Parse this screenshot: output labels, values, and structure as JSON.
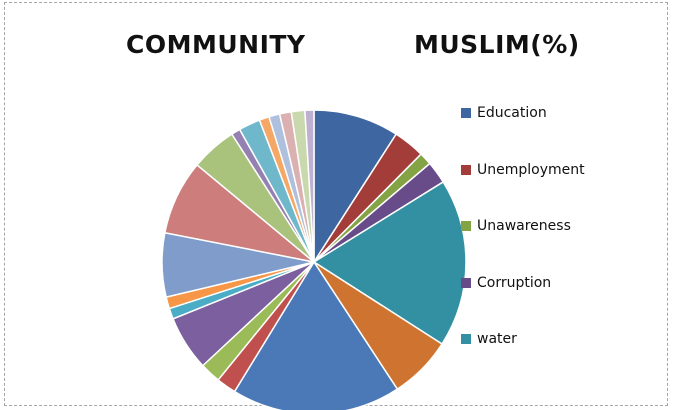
{
  "chart_data": {
    "type": "pie",
    "title_left": "COMMUNITY",
    "title_right": "MUSLIM(%)",
    "legend_visible": [
      {
        "label": "Education",
        "color": "#3e66a1"
      },
      {
        "label": "Unemployment",
        "color": "#a33d3a"
      },
      {
        "label": "Unawareness",
        "color": "#84a344"
      },
      {
        "label": "Corruption",
        "color": "#684c8a"
      },
      {
        "label": "water",
        "color": "#3390a3"
      }
    ],
    "slices": [
      {
        "value": 9.5,
        "color": "#3e66a1"
      },
      {
        "value": 3.5,
        "color": "#a33d3a"
      },
      {
        "value": 1.4,
        "color": "#84a344"
      },
      {
        "value": 2.5,
        "color": "#684c8a"
      },
      {
        "value": 18.7,
        "color": "#3390a3"
      },
      {
        "value": 7.0,
        "color": "#cf7430"
      },
      {
        "value": 18.8,
        "color": "#4b79b8"
      },
      {
        "value": 2.2,
        "color": "#c0504d"
      },
      {
        "value": 2.3,
        "color": "#9bbb59"
      },
      {
        "value": 6.1,
        "color": "#7b5f9e"
      },
      {
        "value": 1.2,
        "color": "#4bacc6"
      },
      {
        "value": 1.3,
        "color": "#f79646"
      },
      {
        "value": 7.1,
        "color": "#7f9ccb"
      },
      {
        "value": 8.3,
        "color": "#cd7e7c"
      },
      {
        "value": 5.1,
        "color": "#a9c27c"
      },
      {
        "value": 1.0,
        "color": "#9481b1"
      },
      {
        "value": 2.4,
        "color": "#6fb8cc"
      },
      {
        "value": 1.1,
        "color": "#f5a866"
      },
      {
        "value": 1.2,
        "color": "#aec0dd"
      },
      {
        "value": 1.3,
        "color": "#dbb0b0"
      },
      {
        "value": 1.5,
        "color": "#c9d8ad"
      },
      {
        "value": 1.0,
        "color": "#bdb0d0"
      }
    ]
  }
}
